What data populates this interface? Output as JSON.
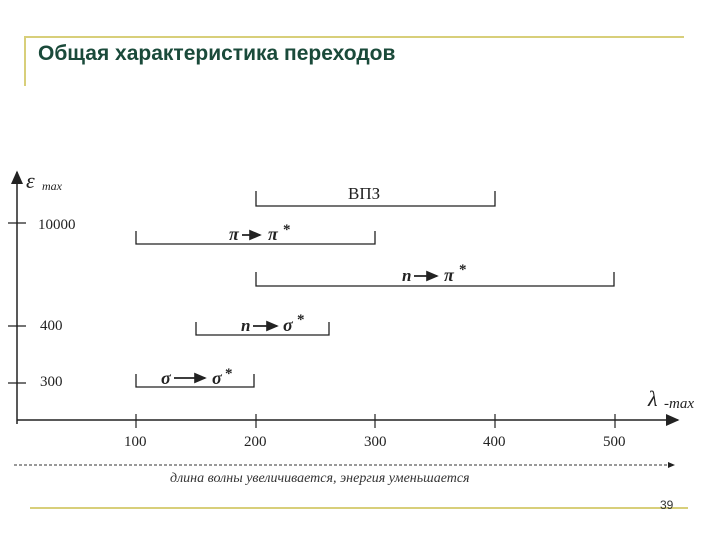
{
  "slide": {
    "title": "Общая характеристика переходов",
    "page_number": "39"
  },
  "diagram": {
    "y_axis_label": "ε",
    "y_axis_sub": "max",
    "x_axis_label": "λ",
    "x_axis_sub": "-max",
    "y_ticks": [
      "10000",
      "400",
      "300"
    ],
    "x_ticks": [
      "100",
      "200",
      "300",
      "400",
      "500"
    ],
    "ranges": {
      "vis": "ВПЗ",
      "pi_pi": {
        "a": "π",
        "b": "π",
        "star": "*"
      },
      "n_pi": {
        "a": "n",
        "b": "π",
        "star": "*"
      },
      "n_sigma": {
        "a": "n",
        "b": "σ",
        "star": "*"
      },
      "sigma_sigma": {
        "a": "σ",
        "b": "σ",
        "star": "*"
      }
    },
    "caption": "длина волны увеличивается, энергия уменьшается"
  },
  "colors": {
    "accent": "#d8cf7a",
    "title": "#1a4a3a",
    "ink": "#222222"
  }
}
